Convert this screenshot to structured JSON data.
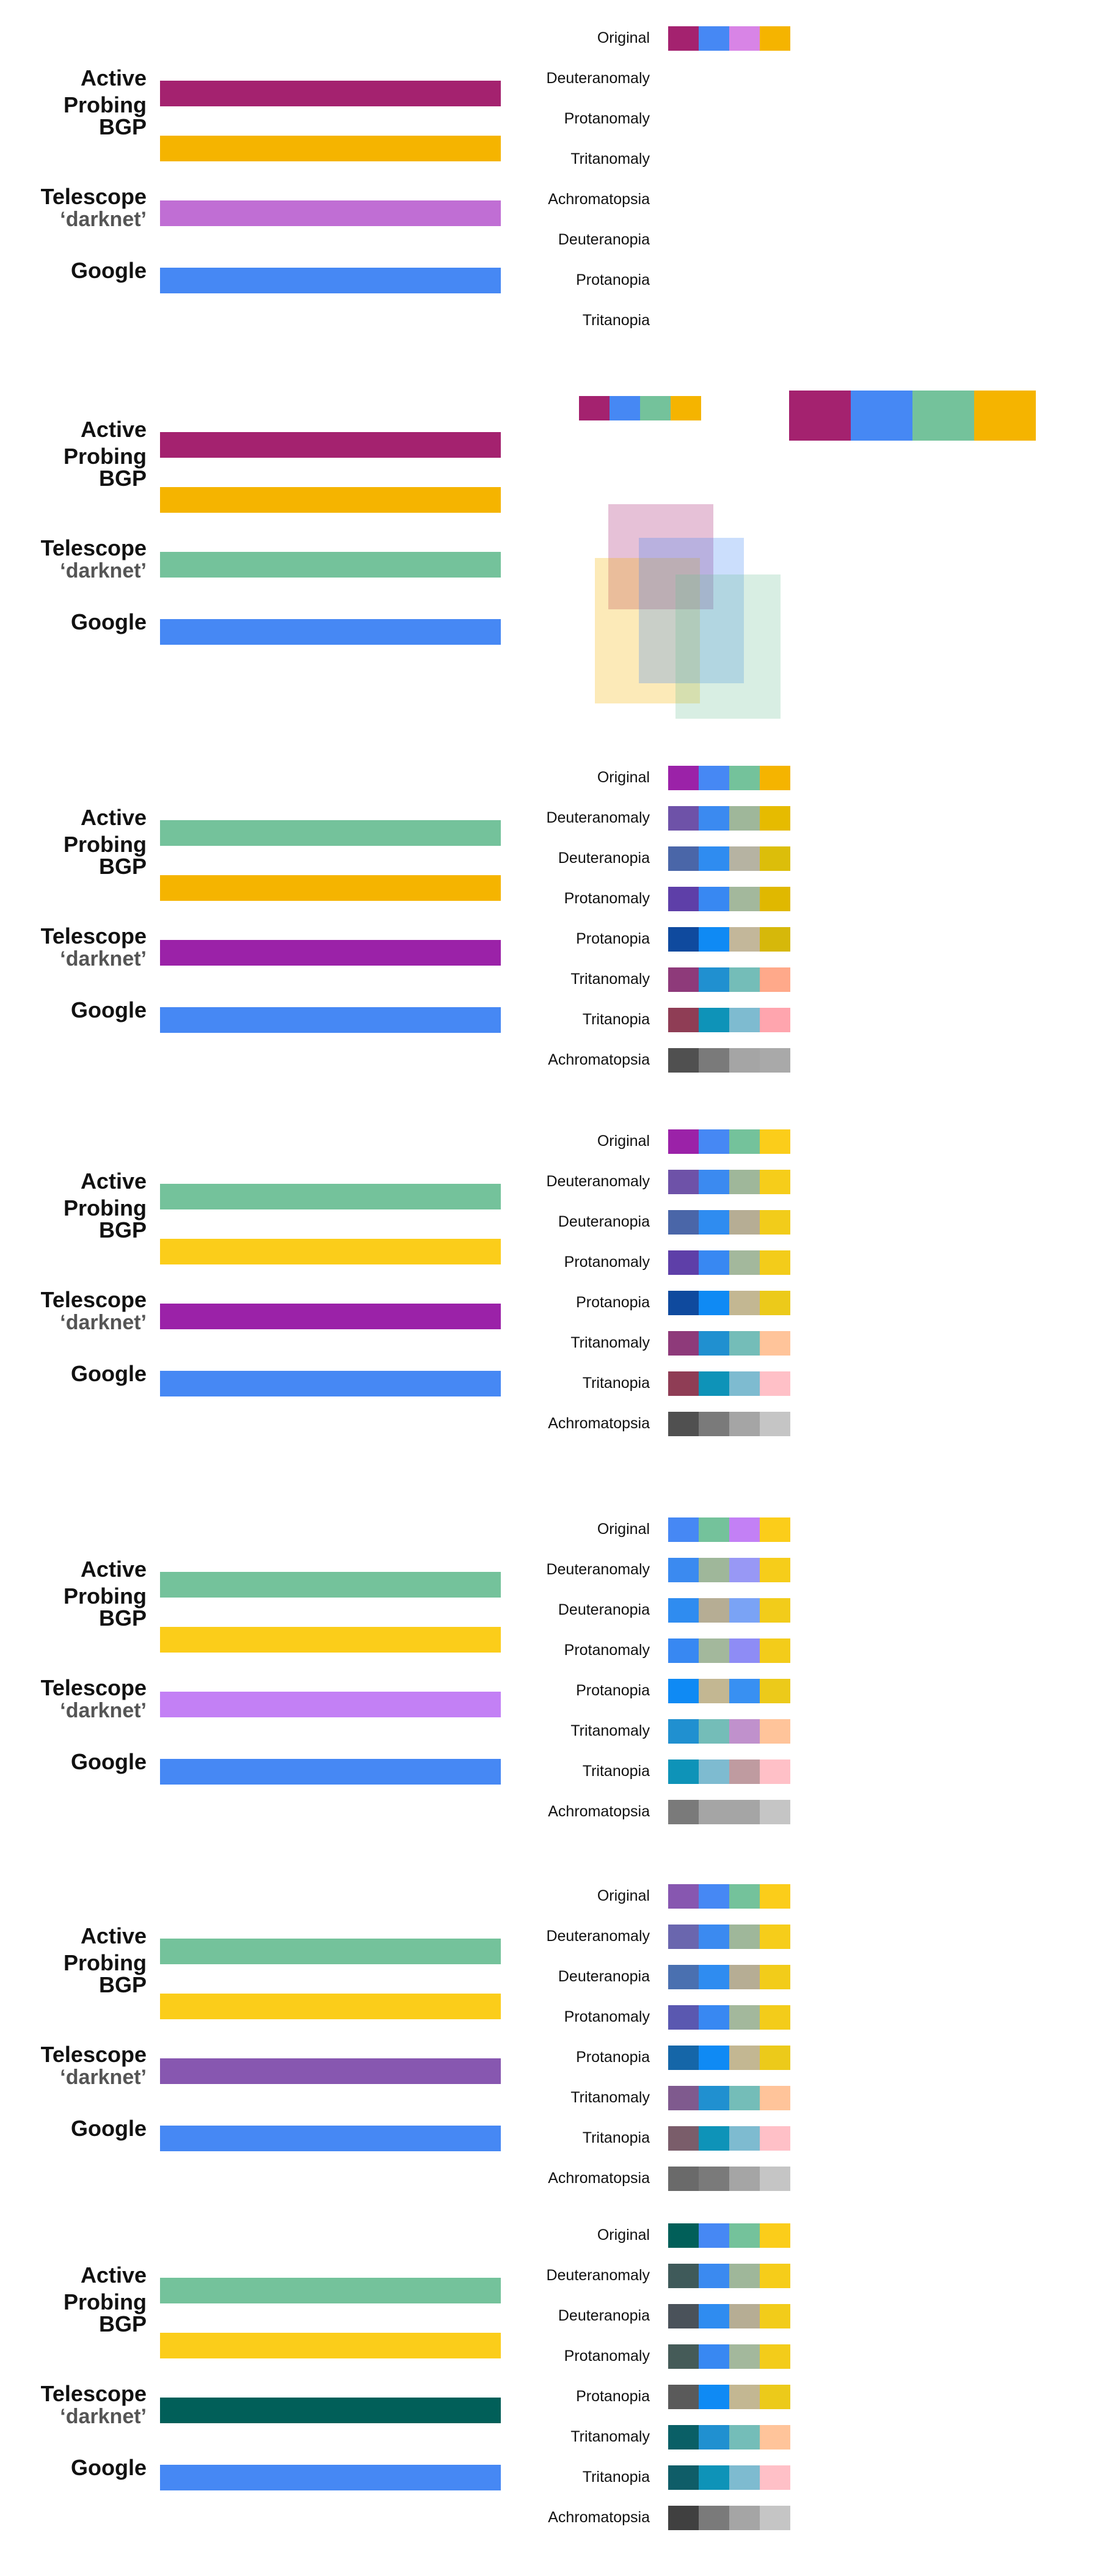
{
  "series_labels": {
    "active_line1": "Active",
    "active_line2": "Probing",
    "bgp": "BGP",
    "telescope_line1": "Telescope",
    "telescope_line2": "‘darknet’",
    "google": "Google"
  },
  "panels": [
    {
      "bars": [
        "#a4226f",
        "#f5b400",
        "#c06ed4",
        "#4688f4"
      ],
      "rows": [
        {
          "label": "Original",
          "colors": [
            "#a4226f",
            "#4688f4",
            "#d884e6",
            "#f5b400"
          ]
        },
        {
          "label": "Deuteranomaly",
          "colors": []
        },
        {
          "label": "Protanomaly",
          "colors": []
        },
        {
          "label": "Tritanomaly",
          "colors": []
        },
        {
          "label": "Achromatopsia",
          "colors": []
        },
        {
          "label": "Deuteranopia",
          "colors": []
        },
        {
          "label": "Protanopia",
          "colors": []
        },
        {
          "label": "Tritanopia",
          "colors": []
        }
      ]
    },
    {
      "bars": [
        "#a4226f",
        "#f5b400",
        "#74c29b",
        "#4688f4"
      ],
      "small_swatch": [
        "#a4226f",
        "#4688f4",
        "#74c29b",
        "#f5b400"
      ],
      "large_swatch": [
        "#a4226f",
        "#4688f4",
        "#74c29b",
        "#f5b400"
      ]
    },
    {
      "bars": [
        "#74c29b",
        "#f5b400",
        "#9b22a8",
        "#4688f4"
      ],
      "rows": [
        {
          "label": "Original",
          "colors": [
            "#9b22a8",
            "#4688f4",
            "#74c29b",
            "#f5b400"
          ]
        },
        {
          "label": "Deuteranomaly",
          "colors": [
            "#6e52a8",
            "#3b8af0",
            "#9fb79a",
            "#e6bb00"
          ]
        },
        {
          "label": "Deuteranopia",
          "colors": [
            "#4a66a8",
            "#2f8cf0",
            "#b6b3a2",
            "#dcbe0a"
          ]
        },
        {
          "label": "Protanomaly",
          "colors": [
            "#5e3fa8",
            "#3888f2",
            "#a3b89c",
            "#e0b800"
          ]
        },
        {
          "label": "Protanopia",
          "colors": [
            "#0f4a9e",
            "#0f8af4",
            "#c3b79a",
            "#d6b80a"
          ]
        },
        {
          "label": "Tritanomaly",
          "colors": [
            "#8e3a7a",
            "#2090d0",
            "#74bdb8",
            "#ffa98a"
          ]
        },
        {
          "label": "Tritanopia",
          "colors": [
            "#8f3d55",
            "#0e93b8",
            "#7ebbd0",
            "#ffa5ae"
          ]
        },
        {
          "label": "Achromatopsia",
          "colors": [
            "#505050",
            "#7a7a7a",
            "#a5a5a5",
            "#a9a9a9"
          ]
        }
      ]
    },
    {
      "bars": [
        "#74c29b",
        "#fbcd1a",
        "#9b22a8",
        "#4688f4"
      ],
      "rows": [
        {
          "label": "Original",
          "colors": [
            "#9b22a8",
            "#4688f4",
            "#74c29b",
            "#fbcd1a"
          ]
        },
        {
          "label": "Deuteranomaly",
          "colors": [
            "#6e52a8",
            "#3b8af0",
            "#9fb79a",
            "#f6cd1a"
          ]
        },
        {
          "label": "Deuteranopia",
          "colors": [
            "#4a66a8",
            "#2f8cf0",
            "#b6ad94",
            "#f2cc1a"
          ]
        },
        {
          "label": "Protanomaly",
          "colors": [
            "#5e3fa8",
            "#3888f2",
            "#a3b89c",
            "#f3cc1a"
          ]
        },
        {
          "label": "Protanopia",
          "colors": [
            "#0f4a9e",
            "#0f8af4",
            "#c3b792",
            "#ecca1a"
          ]
        },
        {
          "label": "Tritanomaly",
          "colors": [
            "#8e3a7a",
            "#2090d0",
            "#74bdb8",
            "#ffc49a"
          ]
        },
        {
          "label": "Tritanopia",
          "colors": [
            "#8f3d55",
            "#0e93b8",
            "#7ebbd0",
            "#ffc0c7"
          ]
        },
        {
          "label": "Achromatopsia",
          "colors": [
            "#505050",
            "#7a7a7a",
            "#a5a5a5",
            "#c5c5c5"
          ]
        }
      ]
    },
    {
      "bars": [
        "#74c29b",
        "#fbcd1a",
        "#c380f5",
        "#4688f4"
      ],
      "rows": [
        {
          "label": "Original",
          "colors": [
            "#4688f4",
            "#74c29b",
            "#c380f5",
            "#fbcd1a"
          ]
        },
        {
          "label": "Deuteranomaly",
          "colors": [
            "#3b8af0",
            "#9fb79a",
            "#9898f5",
            "#f6cd1a"
          ]
        },
        {
          "label": "Deuteranopia",
          "colors": [
            "#2f8cf0",
            "#b6ad94",
            "#7aa3f5",
            "#f2cc1a"
          ]
        },
        {
          "label": "Protanomaly",
          "colors": [
            "#3888f2",
            "#a3b89c",
            "#8e8cf5",
            "#f3cc1a"
          ]
        },
        {
          "label": "Protanopia",
          "colors": [
            "#0f8af4",
            "#c3b792",
            "#3890f2",
            "#ecca1a"
          ]
        },
        {
          "label": "Tritanomaly",
          "colors": [
            "#2090d0",
            "#74bdb8",
            "#c091cc",
            "#ffc49a"
          ]
        },
        {
          "label": "Tritanopia",
          "colors": [
            "#0e93b8",
            "#7ebbd0",
            "#bf9ba0",
            "#ffc0c7"
          ]
        },
        {
          "label": "Achromatopsia",
          "colors": [
            "#7a7a7a",
            "#a5a5a5",
            "#a5a5a5",
            "#c5c5c5"
          ]
        }
      ]
    },
    {
      "bars": [
        "#74c29b",
        "#fbcd1a",
        "#8757b0",
        "#4688f4"
      ],
      "rows": [
        {
          "label": "Original",
          "colors": [
            "#8757b0",
            "#4688f4",
            "#74c29b",
            "#fbcd1a"
          ]
        },
        {
          "label": "Deuteranomaly",
          "colors": [
            "#6a66ae",
            "#3b8af0",
            "#9fb79a",
            "#f6cd1a"
          ]
        },
        {
          "label": "Deuteranopia",
          "colors": [
            "#4a70b0",
            "#2f8cf0",
            "#b6ad94",
            "#f2cc1a"
          ]
        },
        {
          "label": "Protanomaly",
          "colors": [
            "#5a58b0",
            "#3888f2",
            "#a3b89c",
            "#f3cc1a"
          ]
        },
        {
          "label": "Protanopia",
          "colors": [
            "#1566a8",
            "#0f8af4",
            "#c3b792",
            "#ecca1a"
          ]
        },
        {
          "label": "Tritanomaly",
          "colors": [
            "#7f5a8e",
            "#2090d0",
            "#74bdb8",
            "#ffc49a"
          ]
        },
        {
          "label": "Tritanopia",
          "colors": [
            "#7a5d6a",
            "#0e93b8",
            "#7ebbd0",
            "#ffc0c7"
          ]
        },
        {
          "label": "Achromatopsia",
          "colors": [
            "#6a6a6a",
            "#7a7a7a",
            "#a5a5a5",
            "#c5c5c5"
          ]
        }
      ]
    },
    {
      "bars": [
        "#74c29b",
        "#fbcd1a",
        "#015f59",
        "#4688f4"
      ],
      "rows": [
        {
          "label": "Original",
          "colors": [
            "#015f59",
            "#4688f4",
            "#74c29b",
            "#fbcd1a"
          ]
        },
        {
          "label": "Deuteranomaly",
          "colors": [
            "#3f5a5a",
            "#3b8af0",
            "#9fb79a",
            "#f6cd1a"
          ]
        },
        {
          "label": "Deuteranopia",
          "colors": [
            "#4a525a",
            "#2f8cf0",
            "#b6ad94",
            "#f2cc1a"
          ]
        },
        {
          "label": "Protanomaly",
          "colors": [
            "#455b58",
            "#3888f2",
            "#a3b89c",
            "#f3cc1a"
          ]
        },
        {
          "label": "Protanopia",
          "colors": [
            "#5a5a5a",
            "#0f8af4",
            "#c3b792",
            "#ecca1a"
          ]
        },
        {
          "label": "Tritanomaly",
          "colors": [
            "#0a5f66",
            "#2090d0",
            "#74bdb8",
            "#ffc49a"
          ]
        },
        {
          "label": "Tritanopia",
          "colors": [
            "#0f5d68",
            "#0e93b8",
            "#7ebbd0",
            "#ffc0c7"
          ]
        },
        {
          "label": "Achromatopsia",
          "colors": [
            "#404040",
            "#7a7a7a",
            "#a5a5a5",
            "#c5c5c5"
          ]
        }
      ]
    }
  ]
}
